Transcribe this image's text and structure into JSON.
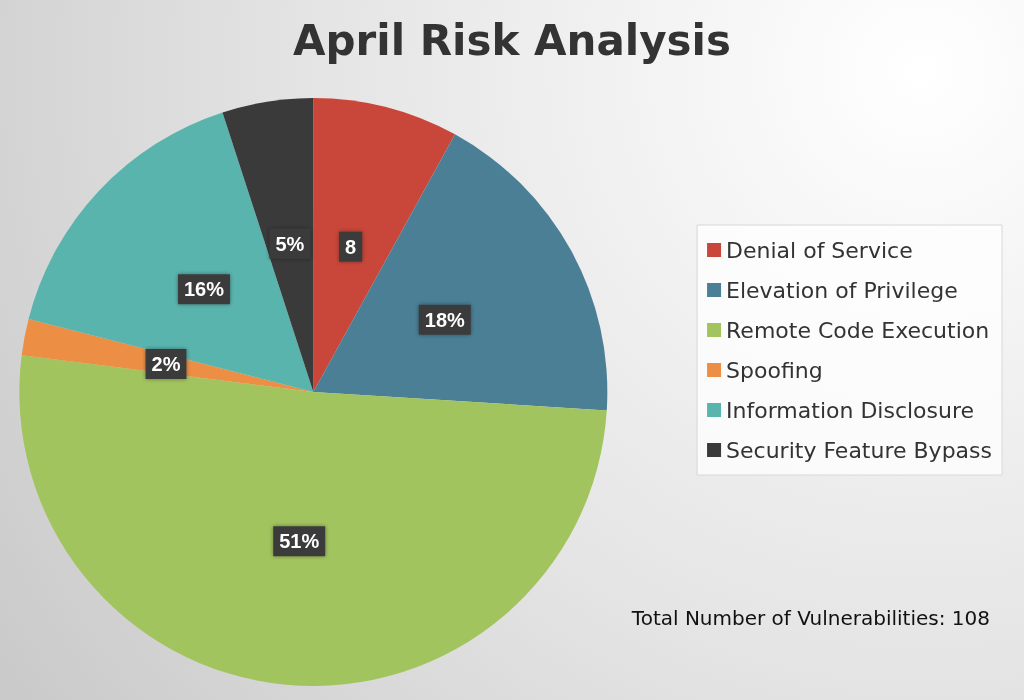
{
  "chart_data": {
    "type": "pie",
    "title": "April Risk Analysis",
    "categories": [
      "Denial of Service",
      "Elevation of Privilege",
      "Remote Code Execution",
      "Spoofing",
      "Information Disclosure",
      "Security Feature Bypass"
    ],
    "values": [
      8,
      18,
      51,
      2,
      16,
      5
    ],
    "value_labels": [
      "8",
      "18%",
      "51%",
      "2%",
      "16%",
      "5%"
    ],
    "colors": [
      "#c9473a",
      "#4a7f96",
      "#a2c45f",
      "#ec8f44",
      "#5ab4ae",
      "#3a3a3a"
    ],
    "legend": "right",
    "annotations": [
      "Total Number of Vulnerabilities: 108"
    ]
  }
}
